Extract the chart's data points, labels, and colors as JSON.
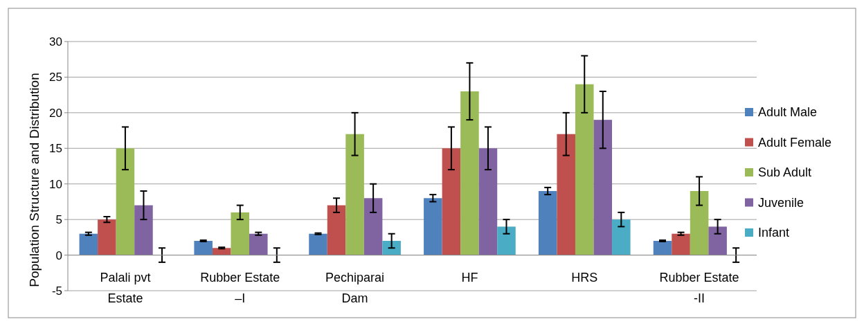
{
  "chart_data": {
    "type": "bar",
    "ylabel": "Population  Structure and Distribution",
    "categories": [
      "Palali pvt\nEstate",
      "Rubber Estate\n–I",
      "Pechiparai\nDam",
      "HF",
      "HRS",
      "Rubber Estate\n-II"
    ],
    "series": [
      {
        "name": "Adult Male",
        "color": "#4f81bd",
        "values": [
          3,
          2,
          3,
          8,
          9,
          2
        ],
        "errors": [
          0.2,
          0.1,
          0.1,
          0.5,
          0.5,
          0.1
        ]
      },
      {
        "name": "Adult Female",
        "color": "#c0504d",
        "values": [
          5,
          1,
          7,
          15,
          17,
          3
        ],
        "errors": [
          0.4,
          0.1,
          1,
          3,
          3,
          0.2
        ]
      },
      {
        "name": "Sub Adult",
        "color": "#9bbb59",
        "values": [
          15,
          6,
          17,
          23,
          24,
          9
        ],
        "errors": [
          3,
          1,
          3,
          4,
          4,
          2
        ]
      },
      {
        "name": "Juvenile",
        "color": "#8064a2",
        "values": [
          7,
          3,
          8,
          15,
          19,
          4
        ],
        "errors": [
          2,
          0.2,
          2,
          3,
          4,
          1
        ]
      },
      {
        "name": "Infant",
        "color": "#4bacc6",
        "values": [
          0,
          0,
          2,
          4,
          5,
          0
        ],
        "errors": [
          1,
          1,
          1,
          1,
          1,
          1
        ]
      }
    ],
    "ylim": [
      -5,
      30
    ],
    "yticks": [
      -5,
      0,
      5,
      10,
      15,
      20,
      25,
      30
    ],
    "grid": "y",
    "legend": "right"
  }
}
